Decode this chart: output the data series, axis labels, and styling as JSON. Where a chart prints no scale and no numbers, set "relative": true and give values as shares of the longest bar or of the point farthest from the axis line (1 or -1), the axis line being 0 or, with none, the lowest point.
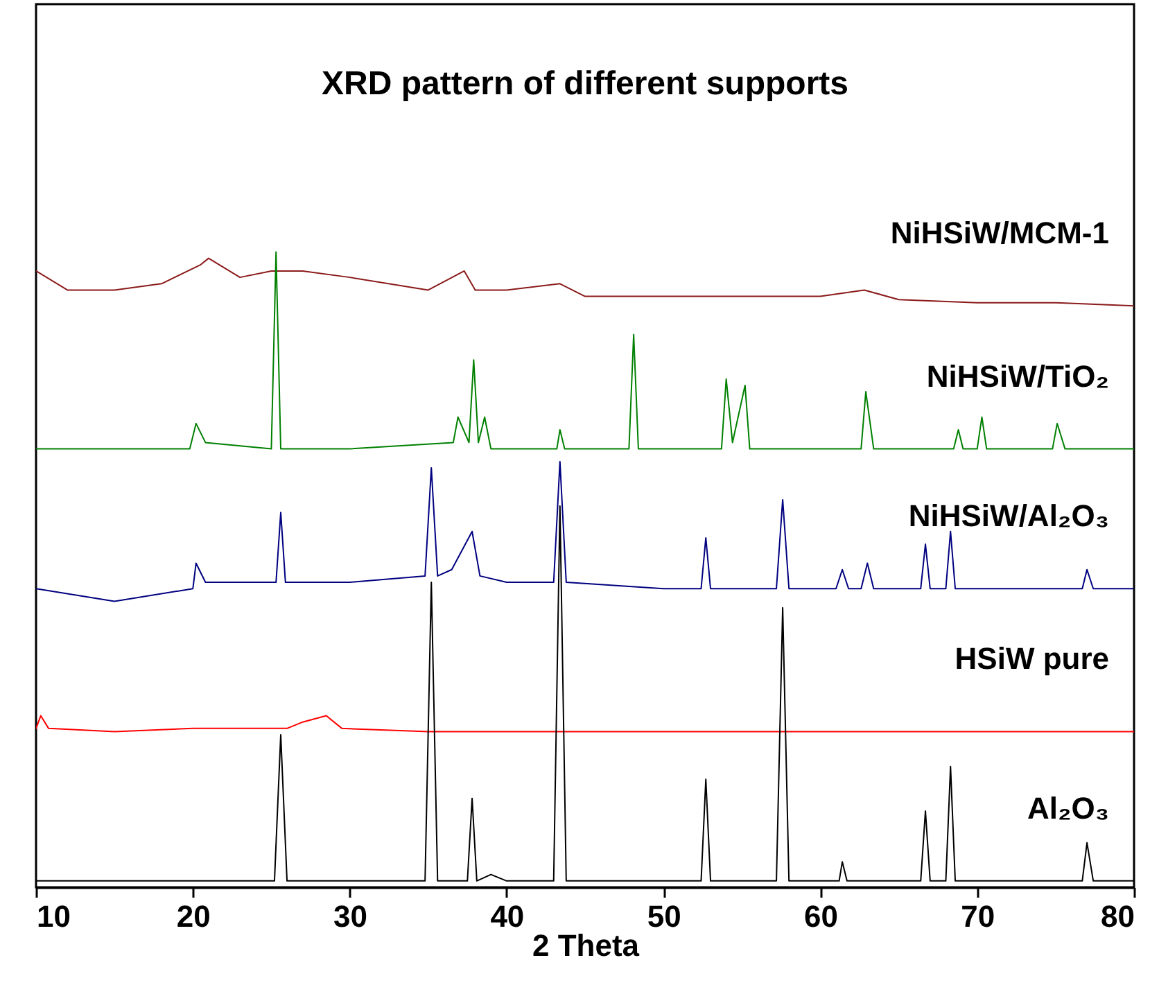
{
  "chart_data": {
    "type": "line",
    "title": "XRD pattern of different supports",
    "xlabel": "2 Theta",
    "relative": true,
    "xlim": [
      10,
      80
    ],
    "xticks": [
      10,
      20,
      30,
      40,
      50,
      60,
      70,
      80
    ],
    "grid": false,
    "legend": false,
    "tick_labels": "x",
    "series": [
      {
        "name": "NiHSiW/MCM-1",
        "color": "#8b1a1a",
        "x": [
          10,
          12,
          15,
          18,
          20.5,
          21,
          23,
          25,
          27,
          30,
          35,
          37.3,
          38,
          40,
          43.4,
          45,
          50,
          55,
          60,
          62.8,
          65,
          70,
          75,
          80
        ],
        "values": [
          0.97,
          0.94,
          0.94,
          0.95,
          0.98,
          0.99,
          0.96,
          0.97,
          0.97,
          0.96,
          0.94,
          0.97,
          0.94,
          0.94,
          0.95,
          0.93,
          0.93,
          0.93,
          0.93,
          0.94,
          0.925,
          0.92,
          0.92,
          0.915
        ]
      },
      {
        "name": "NiHSiW/TiO₂",
        "color": "#008000",
        "x": [
          10,
          19.8,
          20.2,
          20.8,
          25.0,
          25.3,
          25.6,
          30,
          36.6,
          36.9,
          37.6,
          37.9,
          38.2,
          38.6,
          39,
          43.2,
          43.4,
          43.7,
          47.8,
          48.1,
          48.4,
          53.7,
          54.0,
          54.4,
          55.2,
          55.5,
          62.6,
          62.9,
          63.4,
          68.5,
          68.8,
          69.1,
          70.0,
          70.3,
          70.6,
          74.8,
          75.1,
          75.6,
          80
        ],
        "values": [
          0.69,
          0.69,
          0.73,
          0.7,
          0.69,
          1,
          0.69,
          0.69,
          0.7,
          0.74,
          0.7,
          0.83,
          0.7,
          0.74,
          0.69,
          0.69,
          0.72,
          0.69,
          0.69,
          0.87,
          0.69,
          0.69,
          0.8,
          0.7,
          0.79,
          0.69,
          0.69,
          0.78,
          0.69,
          0.69,
          0.72,
          0.69,
          0.69,
          0.74,
          0.69,
          0.69,
          0.73,
          0.69,
          0.69
        ]
      },
      {
        "name": "NiHSiW/Al₂O₃",
        "color": "#000080",
        "x": [
          10,
          15,
          20,
          20.2,
          20.8,
          25.3,
          25.6,
          25.9,
          30,
          34.8,
          35.2,
          35.6,
          36.5,
          37.8,
          38.3,
          40,
          43.0,
          43.4,
          43.8,
          50,
          52.4,
          52.7,
          53.0,
          57.2,
          57.6,
          58.0,
          61.0,
          61.4,
          61.8,
          62.6,
          63.0,
          63.4,
          66.4,
          66.7,
          67.0,
          68.0,
          68.3,
          68.6,
          76.7,
          77.0,
          77.4,
          80
        ],
        "values": [
          0.47,
          0.45,
          0.47,
          0.51,
          0.48,
          0.48,
          0.59,
          0.48,
          0.48,
          0.49,
          0.66,
          0.49,
          0.5,
          0.56,
          0.49,
          0.48,
          0.48,
          0.67,
          0.48,
          0.47,
          0.47,
          0.55,
          0.47,
          0.47,
          0.61,
          0.47,
          0.47,
          0.5,
          0.47,
          0.47,
          0.51,
          0.47,
          0.47,
          0.54,
          0.47,
          0.47,
          0.56,
          0.47,
          0.47,
          0.5,
          0.47,
          0.47
        ]
      },
      {
        "name": "HSiW pure",
        "color": "#ff0000",
        "x": [
          10,
          10.3,
          10.8,
          15,
          20,
          26,
          27,
          28.5,
          29.5,
          35,
          45,
          60,
          70,
          80
        ],
        "values": [
          0.25,
          0.27,
          0.25,
          0.245,
          0.25,
          0.25,
          0.26,
          0.27,
          0.25,
          0.245,
          0.245,
          0.245,
          0.245,
          0.245
        ]
      },
      {
        "name": "Al₂O₃",
        "color": "#000000",
        "x": [
          10,
          20,
          25.2,
          25.6,
          26.0,
          30,
          34.8,
          35.2,
          35.6,
          37.5,
          37.8,
          38.1,
          39,
          40,
          43.0,
          43.4,
          43.8,
          50,
          52.4,
          52.7,
          53.0,
          57.2,
          57.6,
          58.0,
          61.2,
          61.4,
          61.7,
          66.4,
          66.7,
          67.0,
          68.0,
          68.3,
          68.6,
          76.7,
          77.0,
          77.4,
          80
        ],
        "values": [
          0.01,
          0.01,
          0.01,
          0.24,
          0.01,
          0.01,
          0.01,
          0.48,
          0.01,
          0.01,
          0.14,
          0.01,
          0.02,
          0.01,
          0.01,
          0.6,
          0.01,
          0.01,
          0.01,
          0.17,
          0.01,
          0.01,
          0.44,
          0.01,
          0.01,
          0.04,
          0.01,
          0.01,
          0.12,
          0.01,
          0.01,
          0.19,
          0.01,
          0.01,
          0.07,
          0.01,
          0.01
        ]
      }
    ]
  }
}
